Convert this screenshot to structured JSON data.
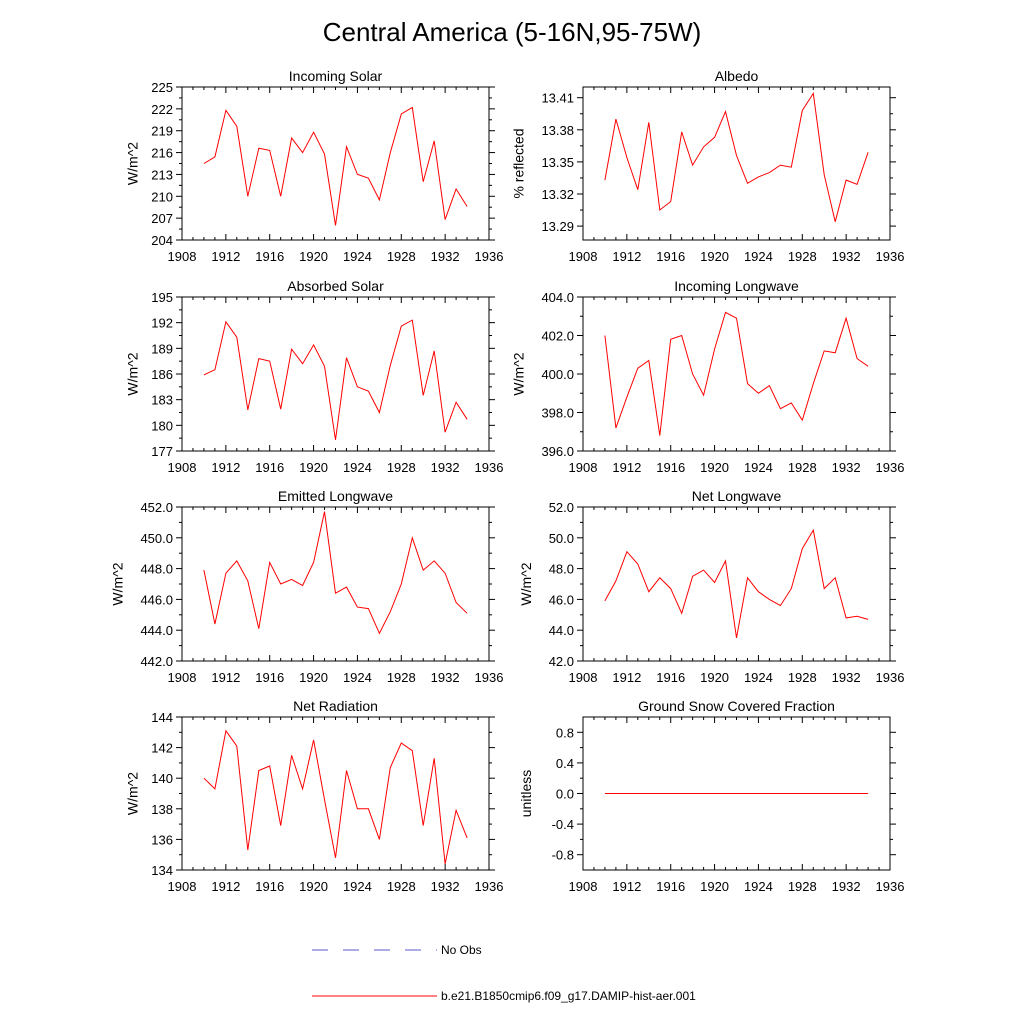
{
  "figure": {
    "title": "Central America (5-16N,95-75W)"
  },
  "legend": {
    "entries": [
      {
        "label": "No Obs",
        "style": "dashed",
        "color": "#5a5acc"
      },
      {
        "label": "b.e21.B1850cmip6.f09_g17.DAMIP-hist-aer.001",
        "style": "solid",
        "color": "#ff0000"
      }
    ]
  },
  "colors": {
    "series": "#ff0000",
    "axis": "#000000"
  },
  "chart_data": [
    {
      "type": "line",
      "title": "Incoming Solar",
      "ylabel": "W/m^2",
      "xlim": [
        1908,
        1936
      ],
      "xticks": [
        "1908",
        "1912",
        "1916",
        "1920",
        "1924",
        "1928",
        "1932",
        "1936"
      ],
      "ylim": [
        204,
        225
      ],
      "yticks": [
        "204",
        "207",
        "210",
        "213",
        "216",
        "219",
        "222",
        "225"
      ],
      "x": [
        1910,
        1911,
        1912,
        1913,
        1914,
        1915,
        1916,
        1917,
        1918,
        1919,
        1920,
        1921,
        1922,
        1923,
        1924,
        1925,
        1926,
        1927,
        1928,
        1929,
        1930,
        1931,
        1932,
        1933,
        1934
      ],
      "series": [
        {
          "values": [
            214.5,
            215.4,
            221.8,
            219.6,
            210.0,
            216.6,
            216.3,
            210.0,
            218.0,
            216.0,
            218.8,
            215.8,
            206.0,
            216.8,
            213.0,
            212.5,
            209.5,
            216.0,
            221.3,
            222.2,
            212.0,
            217.6,
            206.8,
            211.0,
            208.6
          ]
        }
      ]
    },
    {
      "type": "line",
      "title": "Albedo",
      "ylabel": "% reflected",
      "xlim": [
        1908,
        1936
      ],
      "xticks": [
        "1908",
        "1912",
        "1916",
        "1920",
        "1924",
        "1928",
        "1932",
        "1936"
      ],
      "ylim": [
        13.277,
        13.42
      ],
      "yticks": [
        "13.29",
        "13.32",
        "13.35",
        "13.38",
        "13.41"
      ],
      "x": [
        1910,
        1911,
        1912,
        1913,
        1914,
        1915,
        1916,
        1917,
        1918,
        1919,
        1920,
        1921,
        1922,
        1923,
        1924,
        1925,
        1926,
        1927,
        1928,
        1929,
        1930,
        1931,
        1932,
        1933,
        1934
      ],
      "series": [
        {
          "values": [
            13.333,
            13.39,
            13.354,
            13.324,
            13.387,
            13.305,
            13.313,
            13.378,
            13.347,
            13.364,
            13.373,
            13.397,
            13.356,
            13.33,
            13.336,
            13.34,
            13.347,
            13.345,
            13.398,
            13.414,
            13.338,
            13.294,
            13.333,
            13.329,
            13.359
          ]
        }
      ]
    },
    {
      "type": "line",
      "title": "Absorbed Solar",
      "ylabel": "W/m^2",
      "xlim": [
        1908,
        1936
      ],
      "xticks": [
        "1908",
        "1912",
        "1916",
        "1920",
        "1924",
        "1928",
        "1932",
        "1936"
      ],
      "ylim": [
        177,
        195
      ],
      "yticks": [
        "177",
        "180",
        "183",
        "186",
        "189",
        "192",
        "195"
      ],
      "x": [
        1910,
        1911,
        1912,
        1913,
        1914,
        1915,
        1916,
        1917,
        1918,
        1919,
        1920,
        1921,
        1922,
        1923,
        1924,
        1925,
        1926,
        1927,
        1928,
        1929,
        1930,
        1931,
        1932,
        1933,
        1934
      ],
      "series": [
        {
          "values": [
            185.9,
            186.5,
            192.1,
            190.3,
            181.8,
            187.8,
            187.5,
            181.9,
            188.9,
            187.2,
            189.4,
            186.9,
            178.3,
            187.9,
            184.5,
            184.0,
            181.5,
            187.0,
            191.6,
            192.3,
            183.5,
            188.7,
            179.2,
            182.7,
            180.7
          ]
        }
      ]
    },
    {
      "type": "line",
      "title": "Incoming Longwave",
      "ylabel": "W/m^2",
      "xlim": [
        1908,
        1936
      ],
      "xticks": [
        "1908",
        "1912",
        "1916",
        "1920",
        "1924",
        "1928",
        "1932",
        "1936"
      ],
      "ylim": [
        396.0,
        404.0
      ],
      "yticks": [
        "396.0",
        "398.0",
        "400.0",
        "402.0",
        "404.0"
      ],
      "x": [
        1910,
        1911,
        1912,
        1913,
        1914,
        1915,
        1916,
        1917,
        1918,
        1919,
        1920,
        1921,
        1922,
        1923,
        1924,
        1925,
        1926,
        1927,
        1928,
        1929,
        1930,
        1931,
        1932,
        1933,
        1934
      ],
      "series": [
        {
          "values": [
            402.0,
            397.2,
            398.8,
            400.3,
            400.7,
            396.8,
            401.8,
            402.0,
            400.0,
            398.9,
            401.3,
            403.2,
            402.9,
            399.5,
            399.0,
            399.4,
            398.2,
            398.5,
            397.6,
            399.5,
            401.2,
            401.1,
            402.9,
            400.8,
            400.4
          ]
        }
      ]
    },
    {
      "type": "line",
      "title": "Emitted Longwave",
      "ylabel": "W/m^2",
      "xlim": [
        1908,
        1936
      ],
      "xticks": [
        "1908",
        "1912",
        "1916",
        "1920",
        "1924",
        "1928",
        "1932",
        "1936"
      ],
      "ylim": [
        442.0,
        452.0
      ],
      "yticks": [
        "442.0",
        "444.0",
        "446.0",
        "448.0",
        "450.0",
        "452.0"
      ],
      "x": [
        1910,
        1911,
        1912,
        1913,
        1914,
        1915,
        1916,
        1917,
        1918,
        1919,
        1920,
        1921,
        1922,
        1923,
        1924,
        1925,
        1926,
        1927,
        1928,
        1929,
        1930,
        1931,
        1932,
        1933,
        1934
      ],
      "series": [
        {
          "values": [
            447.9,
            444.4,
            447.7,
            448.5,
            447.2,
            444.1,
            448.4,
            447.0,
            447.3,
            446.9,
            448.4,
            451.7,
            446.4,
            446.8,
            445.5,
            445.4,
            443.8,
            445.2,
            447.0,
            450.0,
            447.9,
            448.5,
            447.7,
            445.8,
            445.1
          ]
        }
      ]
    },
    {
      "type": "line",
      "title": "Net Longwave",
      "ylabel": "W/m^2",
      "xlim": [
        1908,
        1936
      ],
      "xticks": [
        "1908",
        "1912",
        "1916",
        "1920",
        "1924",
        "1928",
        "1932",
        "1936"
      ],
      "ylim": [
        42.0,
        52.0
      ],
      "yticks": [
        "42.0",
        "44.0",
        "46.0",
        "48.0",
        "50.0",
        "52.0"
      ],
      "x": [
        1910,
        1911,
        1912,
        1913,
        1914,
        1915,
        1916,
        1917,
        1918,
        1919,
        1920,
        1921,
        1922,
        1923,
        1924,
        1925,
        1926,
        1927,
        1928,
        1929,
        1930,
        1931,
        1932,
        1933,
        1934
      ],
      "series": [
        {
          "values": [
            45.9,
            47.2,
            49.1,
            48.3,
            46.5,
            47.4,
            46.7,
            45.1,
            47.5,
            47.9,
            47.1,
            48.5,
            43.5,
            47.4,
            46.5,
            46.0,
            45.6,
            46.7,
            49.3,
            50.5,
            46.7,
            47.4,
            44.8,
            44.9,
            44.7
          ]
        }
      ]
    },
    {
      "type": "line",
      "title": "Net Radiation",
      "ylabel": "W/m^2",
      "xlim": [
        1908,
        1936
      ],
      "xticks": [
        "1908",
        "1912",
        "1916",
        "1920",
        "1924",
        "1928",
        "1932",
        "1936"
      ],
      "ylim": [
        134,
        144
      ],
      "yticks": [
        "134",
        "136",
        "138",
        "140",
        "142",
        "144"
      ],
      "x": [
        1910,
        1911,
        1912,
        1913,
        1914,
        1915,
        1916,
        1917,
        1918,
        1919,
        1920,
        1921,
        1922,
        1923,
        1924,
        1925,
        1926,
        1927,
        1928,
        1929,
        1930,
        1931,
        1932,
        1933,
        1934
      ],
      "series": [
        {
          "values": [
            140.0,
            139.3,
            143.1,
            142.1,
            135.3,
            140.5,
            140.8,
            136.9,
            141.5,
            139.3,
            142.5,
            138.6,
            134.8,
            140.5,
            138.0,
            138.0,
            136.0,
            140.7,
            142.3,
            141.8,
            136.9,
            141.3,
            134.4,
            137.9,
            136.1
          ]
        }
      ]
    },
    {
      "type": "line",
      "title": "Ground Snow Covered Fraction",
      "ylabel": "unitless",
      "xlim": [
        1908,
        1936
      ],
      "xticks": [
        "1908",
        "1912",
        "1916",
        "1920",
        "1924",
        "1928",
        "1932",
        "1936"
      ],
      "ylim": [
        -1.0,
        1.0
      ],
      "yticks": [
        "-0.8",
        "-0.4",
        "0.0",
        "0.4",
        "0.8"
      ],
      "x": [
        1910,
        1911,
        1912,
        1913,
        1914,
        1915,
        1916,
        1917,
        1918,
        1919,
        1920,
        1921,
        1922,
        1923,
        1924,
        1925,
        1926,
        1927,
        1928,
        1929,
        1930,
        1931,
        1932,
        1933,
        1934
      ],
      "series": [
        {
          "values": [
            0,
            0,
            0,
            0,
            0,
            0,
            0,
            0,
            0,
            0,
            0,
            0,
            0,
            0,
            0,
            0,
            0,
            0,
            0,
            0,
            0,
            0,
            0,
            0,
            0
          ]
        }
      ]
    }
  ]
}
